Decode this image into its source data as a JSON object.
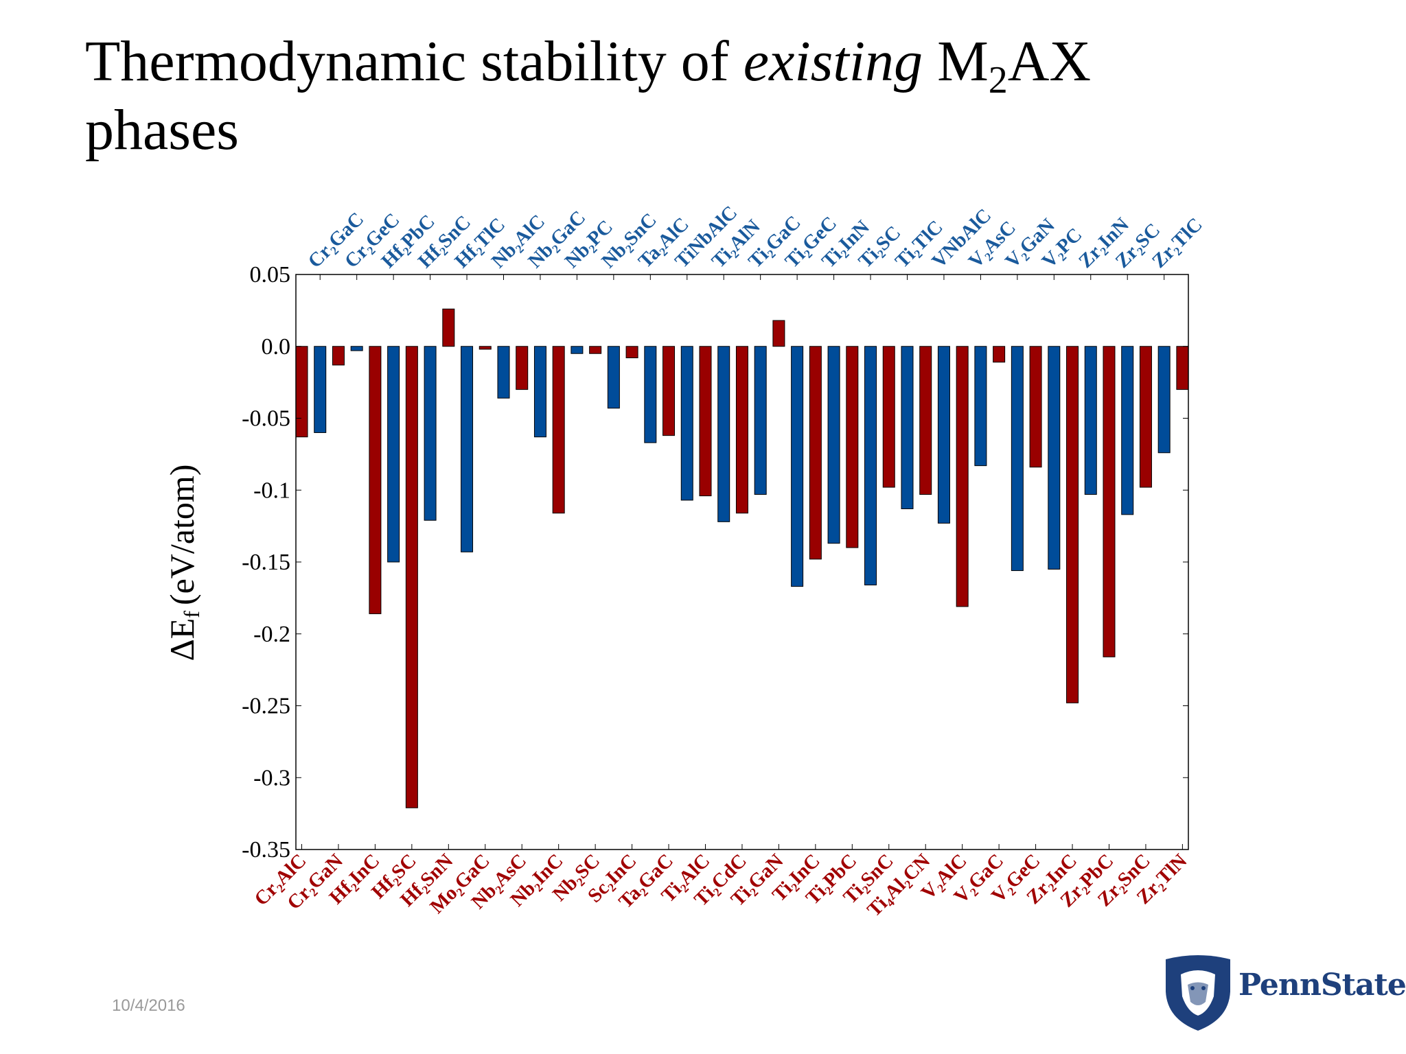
{
  "slide": {
    "title_line1_prefix": "Thermodynamic stability of ",
    "title_italic": "existing",
    "title_formula_m": " M",
    "title_formula_sub": "2",
    "title_formula_rest": "AX",
    "title_line2": "phases",
    "date": "10/4/2016",
    "logo_text": "PennState"
  },
  "chart_data": {
    "type": "bar",
    "title": "",
    "ylabel": "ΔE",
    "ylabel_sub": "f",
    "ylabel_unit": "(eV/atom)",
    "ylim": [
      -0.35,
      0.05
    ],
    "yticks": [
      0.05,
      0.0,
      -0.05,
      -0.1,
      -0.15,
      -0.2,
      -0.25,
      -0.3,
      -0.35
    ],
    "ytick_labels": [
      "0.05",
      "0.0",
      "-0.05",
      "-0.1",
      "-0.15",
      "-0.2",
      "-0.25",
      "-0.3",
      "-0.35"
    ],
    "grid": false,
    "colors": {
      "red": "#990000",
      "blue": "#004c99",
      "red_label": "#a00000",
      "blue_label": "#1a5a9c"
    },
    "bars": [
      {
        "label": "Cr₂AlC",
        "value": -0.063,
        "color": "red",
        "label_side": "bottom"
      },
      {
        "label": "Cr₂GaC",
        "value": -0.06,
        "color": "blue",
        "label_side": "top"
      },
      {
        "label": "Cr₂GaN",
        "value": -0.013,
        "color": "red",
        "label_side": "bottom"
      },
      {
        "label": "Cr₂GeC",
        "value": -0.003,
        "color": "blue",
        "label_side": "top"
      },
      {
        "label": "Hf₂InC",
        "value": -0.186,
        "color": "red",
        "label_side": "bottom"
      },
      {
        "label": "Hf₂PbC",
        "value": -0.15,
        "color": "blue",
        "label_side": "top"
      },
      {
        "label": "Hf₂SC",
        "value": -0.321,
        "color": "red",
        "label_side": "bottom"
      },
      {
        "label": "Hf₂SnC",
        "value": -0.121,
        "color": "blue",
        "label_side": "top"
      },
      {
        "label": "Hf₂SnN",
        "value": 0.026,
        "color": "red",
        "label_side": "bottom"
      },
      {
        "label": "Hf₂TlC",
        "value": -0.143,
        "color": "blue",
        "label_side": "top"
      },
      {
        "label": "Mo₂GaC",
        "value": -0.002,
        "color": "red",
        "label_side": "bottom"
      },
      {
        "label": "Nb₂AlC",
        "value": -0.036,
        "color": "blue",
        "label_side": "top"
      },
      {
        "label": "Nb₂AsC",
        "value": -0.03,
        "color": "red",
        "label_side": "bottom"
      },
      {
        "label": "Nb₂GaC",
        "value": -0.063,
        "color": "blue",
        "label_side": "top"
      },
      {
        "label": "Nb₂InC",
        "value": -0.116,
        "color": "red",
        "label_side": "bottom"
      },
      {
        "label": "Nb₂PC",
        "value": -0.005,
        "color": "blue",
        "label_side": "top"
      },
      {
        "label": "Nb₂SC",
        "value": -0.005,
        "color": "red",
        "label_side": "bottom"
      },
      {
        "label": "Nb₂SnC",
        "value": -0.043,
        "color": "blue",
        "label_side": "top"
      },
      {
        "label": "Sc₂InC",
        "value": -0.008,
        "color": "red",
        "label_side": "bottom"
      },
      {
        "label": "Ta₂AlC",
        "value": -0.067,
        "color": "blue",
        "label_side": "top"
      },
      {
        "label": "Ta₂GaC",
        "value": -0.062,
        "color": "red",
        "label_side": "bottom"
      },
      {
        "label": "TiNbAlC",
        "value": -0.107,
        "color": "blue",
        "label_side": "top"
      },
      {
        "label": "Ti₂AlC",
        "value": -0.104,
        "color": "red",
        "label_side": "bottom"
      },
      {
        "label": "Ti₂AlN",
        "value": -0.122,
        "color": "blue",
        "label_side": "top"
      },
      {
        "label": "Ti₂CdC",
        "value": -0.116,
        "color": "red",
        "label_side": "bottom"
      },
      {
        "label": "Ti₂GaC",
        "value": -0.103,
        "color": "blue",
        "label_side": "top"
      },
      {
        "label": "Ti₂GaN",
        "value": 0.018,
        "color": "red",
        "label_side": "bottom"
      },
      {
        "label": "Ti₂GeC",
        "value": -0.167,
        "color": "blue",
        "label_side": "top"
      },
      {
        "label": "Ti₂InC",
        "value": -0.148,
        "color": "red",
        "label_side": "bottom"
      },
      {
        "label": "Ti₂InN",
        "value": -0.137,
        "color": "blue",
        "label_side": "top"
      },
      {
        "label": "Ti₂PbC",
        "value": -0.14,
        "color": "red",
        "label_side": "bottom"
      },
      {
        "label": "Ti₂SC",
        "value": -0.166,
        "color": "blue",
        "label_side": "top"
      },
      {
        "label": "Ti₂SnC",
        "value": -0.098,
        "color": "red",
        "label_side": "bottom"
      },
      {
        "label": "Ti₂TlC",
        "value": -0.113,
        "color": "blue",
        "label_side": "top"
      },
      {
        "label": "Ti₄Al₂CN",
        "value": -0.103,
        "color": "red",
        "label_side": "bottom"
      },
      {
        "label": "VNbAlC",
        "value": -0.123,
        "color": "blue",
        "label_side": "top"
      },
      {
        "label": "V₂AlC",
        "value": -0.181,
        "color": "red",
        "label_side": "bottom"
      },
      {
        "label": "V₂AsC",
        "value": -0.083,
        "color": "blue",
        "label_side": "top"
      },
      {
        "label": "V₂GaC",
        "value": -0.011,
        "color": "red",
        "label_side": "bottom"
      },
      {
        "label": "V₂GaN",
        "value": -0.156,
        "color": "blue",
        "label_side": "top"
      },
      {
        "label": "V₂GeC",
        "value": -0.084,
        "color": "red",
        "label_side": "bottom"
      },
      {
        "label": "V₂PC",
        "value": -0.155,
        "color": "blue",
        "label_side": "top"
      },
      {
        "label": "Zr₂InC",
        "value": -0.248,
        "color": "red",
        "label_side": "bottom"
      },
      {
        "label": "Zr₂InN",
        "value": -0.103,
        "color": "blue",
        "label_side": "top"
      },
      {
        "label": "Zr₂PbC",
        "value": -0.216,
        "color": "red",
        "label_side": "bottom"
      },
      {
        "label": "Zr₂SC",
        "value": -0.117,
        "color": "blue",
        "label_side": "top"
      },
      {
        "label": "Zr₂SnC",
        "value": -0.098,
        "color": "red",
        "label_side": "bottom"
      },
      {
        "label": "Zr₂TlC",
        "value": -0.074,
        "color": "blue",
        "label_side": "top"
      },
      {
        "label": "Zr₂TlN",
        "value": -0.03,
        "color": "red",
        "label_side": "bottom"
      }
    ]
  }
}
